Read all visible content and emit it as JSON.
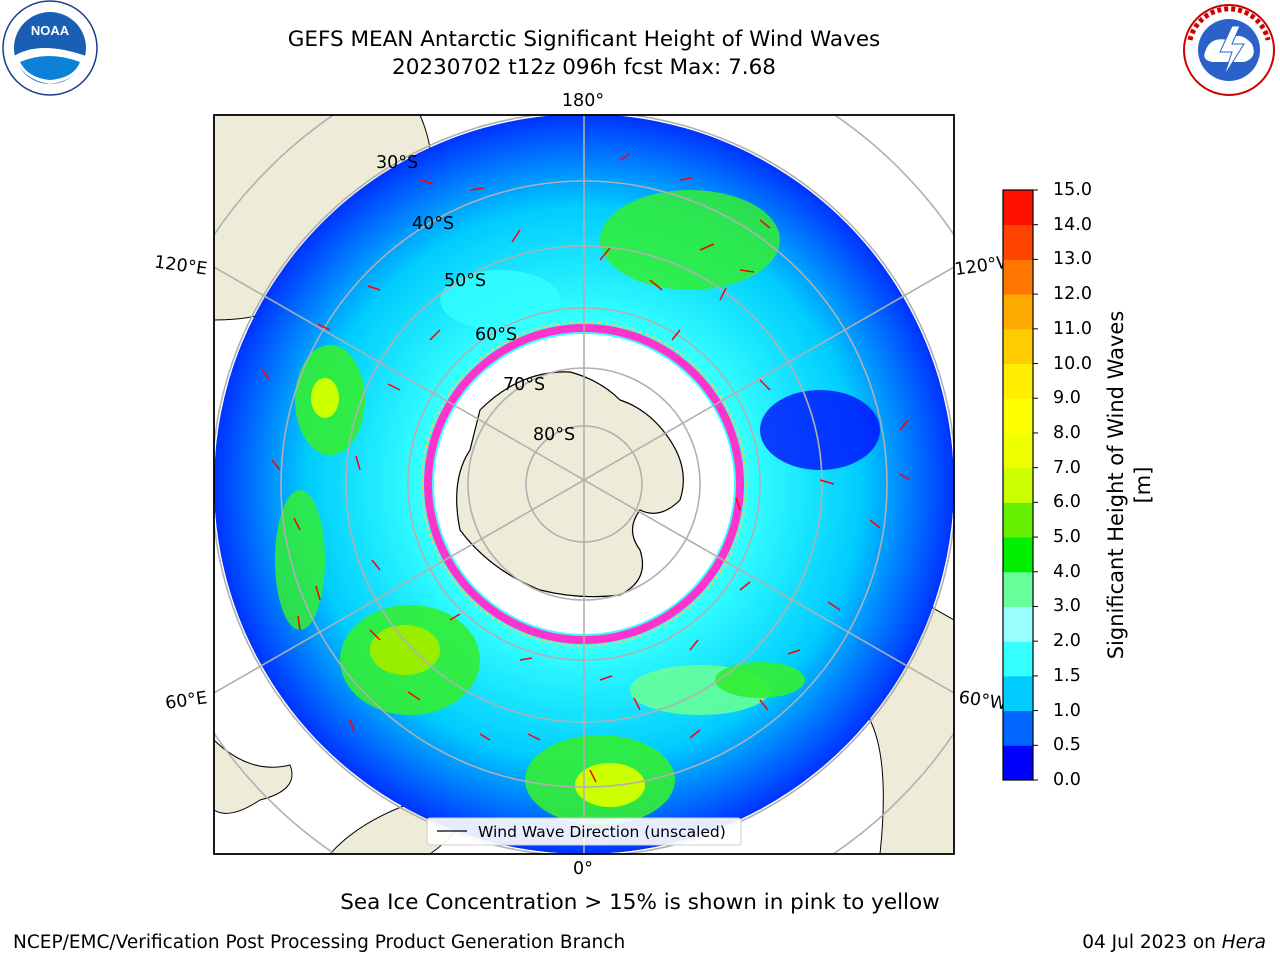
{
  "title": {
    "line1": "GEFS MEAN Antarctic Significant Height of Wind Waves",
    "line2": "20230702 t12z 096h fcst   Max: 7.68"
  },
  "map": {
    "projection": "south-polar-stereographic",
    "lon_labels": [
      "180°",
      "120°E",
      "120°W",
      "60°E",
      "60°W",
      "0°"
    ],
    "lat_labels": [
      "30°S",
      "40°S",
      "50°S",
      "60°S",
      "70°S",
      "80°S"
    ],
    "legend_label": "Wind Wave Direction (unscaled)",
    "land_color": "#eeecd9",
    "ice_colors": [
      "#ff33cc",
      "#ffcc33"
    ]
  },
  "colorbar": {
    "title": "Significant Height of Wind Waves [m]",
    "ticks": [
      "0.0",
      "0.5",
      "1.0",
      "1.5",
      "2.0",
      "3.0",
      "4.0",
      "5.0",
      "6.0",
      "7.0",
      "8.0",
      "9.0",
      "10.0",
      "11.0",
      "12.0",
      "13.0",
      "14.0",
      "15.0"
    ],
    "colors": [
      "#0000ff",
      "#0066ff",
      "#00ccff",
      "#33ffff",
      "#99ffff",
      "#66ff99",
      "#00ee00",
      "#66ee00",
      "#ccff00",
      "#eeff00",
      "#ffff00",
      "#ffee00",
      "#ffcc00",
      "#ffaa00",
      "#ff7700",
      "#ff4400",
      "#ff1100"
    ]
  },
  "footnote": "Sea Ice Concentration > 15% is shown in pink to yellow",
  "credits": {
    "left": "NCEP/EMC/Verification Post Processing Product Generation Branch",
    "right_prefix": "04 Jul 2023 on ",
    "right_host": "Hera"
  },
  "logos": {
    "left": "NOAA",
    "right": "NATIONAL WEATHER SERVICE"
  }
}
